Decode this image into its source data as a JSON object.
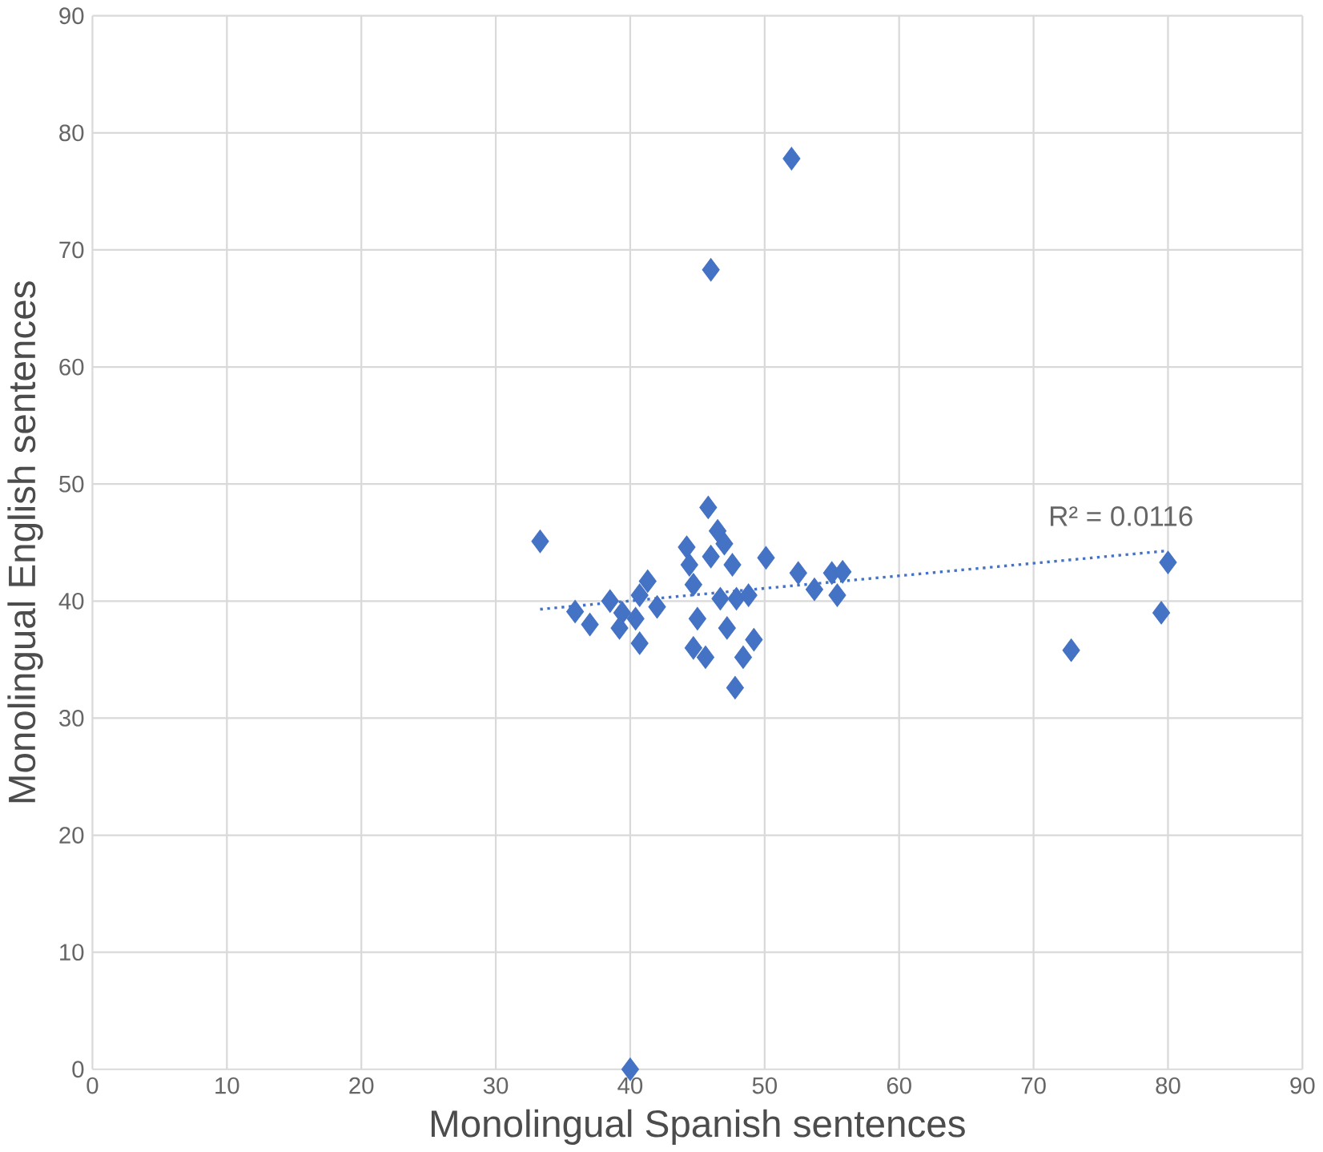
{
  "chart_data": {
    "type": "scatter",
    "xlabel": "Monolingual Spanish sentences",
    "ylabel": "Monolingual English sentences",
    "xlim": [
      0,
      90
    ],
    "ylim": [
      0,
      90
    ],
    "xticks": [
      0,
      10,
      20,
      30,
      40,
      50,
      60,
      70,
      80,
      90
    ],
    "yticks": [
      0,
      10,
      20,
      30,
      40,
      50,
      60,
      70,
      80,
      90
    ],
    "grid": true,
    "annotations": [
      "R² = 0.0116"
    ],
    "series": [
      {
        "color": "#4472c4",
        "marker": "diamond",
        "x": [
          33.3,
          35.9,
          37,
          38.5,
          39.4,
          39.2,
          40.7,
          41.3,
          40.7,
          42,
          40.4,
          44.2,
          44.4,
          44.7,
          45,
          44.7,
          45.6,
          46,
          45.8,
          46.5,
          47,
          47.6,
          46.7,
          47.2,
          47.9,
          48.4,
          48.8,
          49.2,
          47.8,
          50.1,
          52.5,
          53.7,
          55,
          55.4,
          55.8,
          52,
          46,
          40,
          72.8,
          79.5,
          80
        ],
        "values": [
          45.1,
          39.1,
          38,
          40,
          39,
          37.7,
          40.5,
          41.7,
          36.4,
          39.5,
          38.5,
          44.6,
          43.1,
          41.4,
          38.5,
          36,
          35.2,
          43.8,
          48,
          46,
          44.9,
          43.1,
          40.2,
          37.7,
          40.2,
          35.2,
          40.5,
          36.7,
          32.6,
          43.7,
          42.4,
          41,
          42.4,
          40.5,
          42.5,
          77.8,
          68.3,
          0,
          35.8,
          39,
          43.3
        ]
      },
      {
        "type": "line",
        "color": "#4472c4",
        "line_style": "dotted",
        "marker": "none",
        "x": [
          33.3,
          80
        ],
        "values": [
          39.3,
          44.3
        ]
      }
    ]
  }
}
